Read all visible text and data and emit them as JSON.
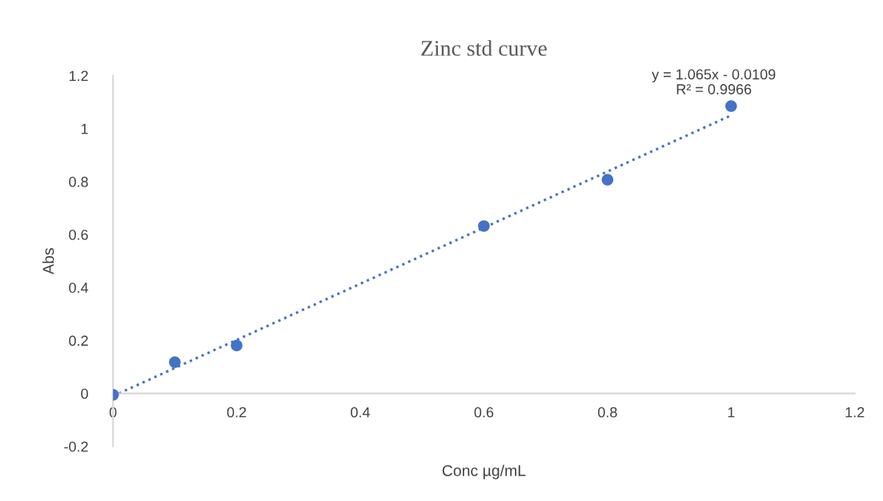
{
  "chart_data": {
    "type": "scatter",
    "title": "Zinc std curve",
    "xlabel": "Conc µg/mL",
    "ylabel": "Abs",
    "xlim": [
      0,
      1.2
    ],
    "xticks": [
      0,
      0.2,
      0.4,
      0.6,
      0.8,
      1,
      1.2
    ],
    "ylim": [
      -0.2,
      1.2
    ],
    "yticks": [
      -0.2,
      0,
      0.2,
      0.4,
      0.6,
      0.8,
      1,
      1.2
    ],
    "grid": false,
    "legend": false,
    "marker": "circle",
    "series": [
      {
        "color": "#4472c4",
        "x": [
          0,
          0.1,
          0.2,
          0.6,
          0.8,
          1
        ],
        "values": [
          -0.005,
          0.118,
          0.181,
          0.632,
          0.807,
          1.085
        ]
      },
      {
        "type": "line",
        "color": "#4472c4",
        "line_style": "dotted",
        "marker": "none",
        "x": [
          0,
          1
        ],
        "values": [
          -0.01,
          1.05
        ]
      }
    ],
    "annotations": [
      "y = 1.065x - 0.0109",
      "R² = 0.9966"
    ]
  }
}
